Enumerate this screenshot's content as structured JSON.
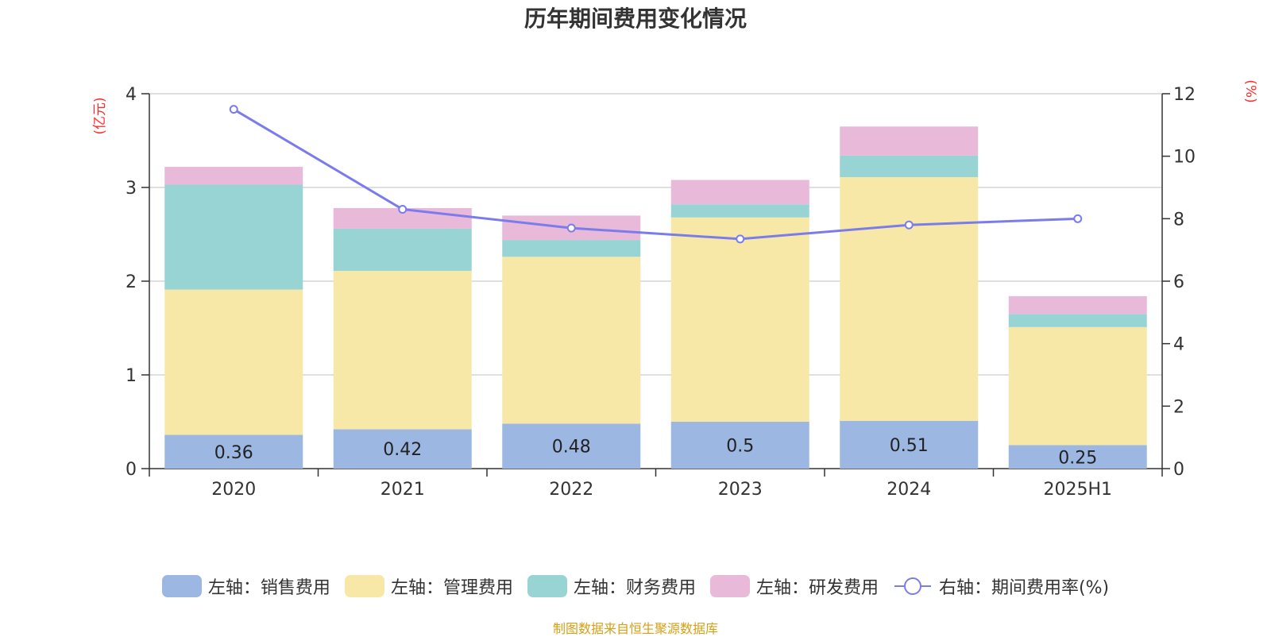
{
  "chart_data": {
    "type": "bar",
    "stacked": true,
    "title": "历年期间费用变化情况",
    "categories": [
      "2020",
      "2021",
      "2022",
      "2023",
      "2024",
      "2025H1"
    ],
    "y_left": {
      "label": "(亿元)",
      "lim": [
        0,
        4
      ],
      "ticks": [
        "0",
        "1",
        "2",
        "3",
        "4"
      ]
    },
    "y_right": {
      "label": "(%)",
      "lim": [
        0,
        12
      ],
      "ticks": [
        "0",
        "2",
        "4",
        "6",
        "8",
        "10",
        "12"
      ]
    },
    "series": [
      {
        "name": "左轴：销售费用",
        "axis": "left",
        "type": "bar",
        "color": "#9cb8e2",
        "values": [
          0.36,
          0.42,
          0.48,
          0.5,
          0.51,
          0.25
        ],
        "labels": [
          "0.36",
          "0.42",
          "0.48",
          "0.5",
          "0.51",
          "0.25"
        ]
      },
      {
        "name": "左轴：管理费用",
        "axis": "left",
        "type": "bar",
        "color": "#f8e8a8",
        "values": [
          1.55,
          1.69,
          1.78,
          2.18,
          2.6,
          1.26
        ]
      },
      {
        "name": "左轴：财务费用",
        "axis": "left",
        "type": "bar",
        "color": "#98d4d4",
        "values": [
          1.12,
          0.45,
          0.18,
          0.14,
          0.23,
          0.14
        ]
      },
      {
        "name": "左轴：研发费用",
        "axis": "left",
        "type": "bar",
        "color": "#e8b9d9",
        "values": [
          0.19,
          0.22,
          0.26,
          0.26,
          0.31,
          0.19
        ]
      },
      {
        "name": "右轴：期间费用率(%)",
        "axis": "right",
        "type": "line",
        "color": "#7b7cec",
        "values": [
          11.5,
          8.3,
          7.7,
          7.35,
          7.8,
          8.0
        ]
      }
    ]
  },
  "source": {
    "text": "制图数据来自恒生聚源数据库",
    "color": "#d4a017"
  },
  "colors": {
    "axis_label": "#ff2a2a",
    "grid": "#cccccc",
    "axis": "#333333",
    "text": "#333333"
  }
}
